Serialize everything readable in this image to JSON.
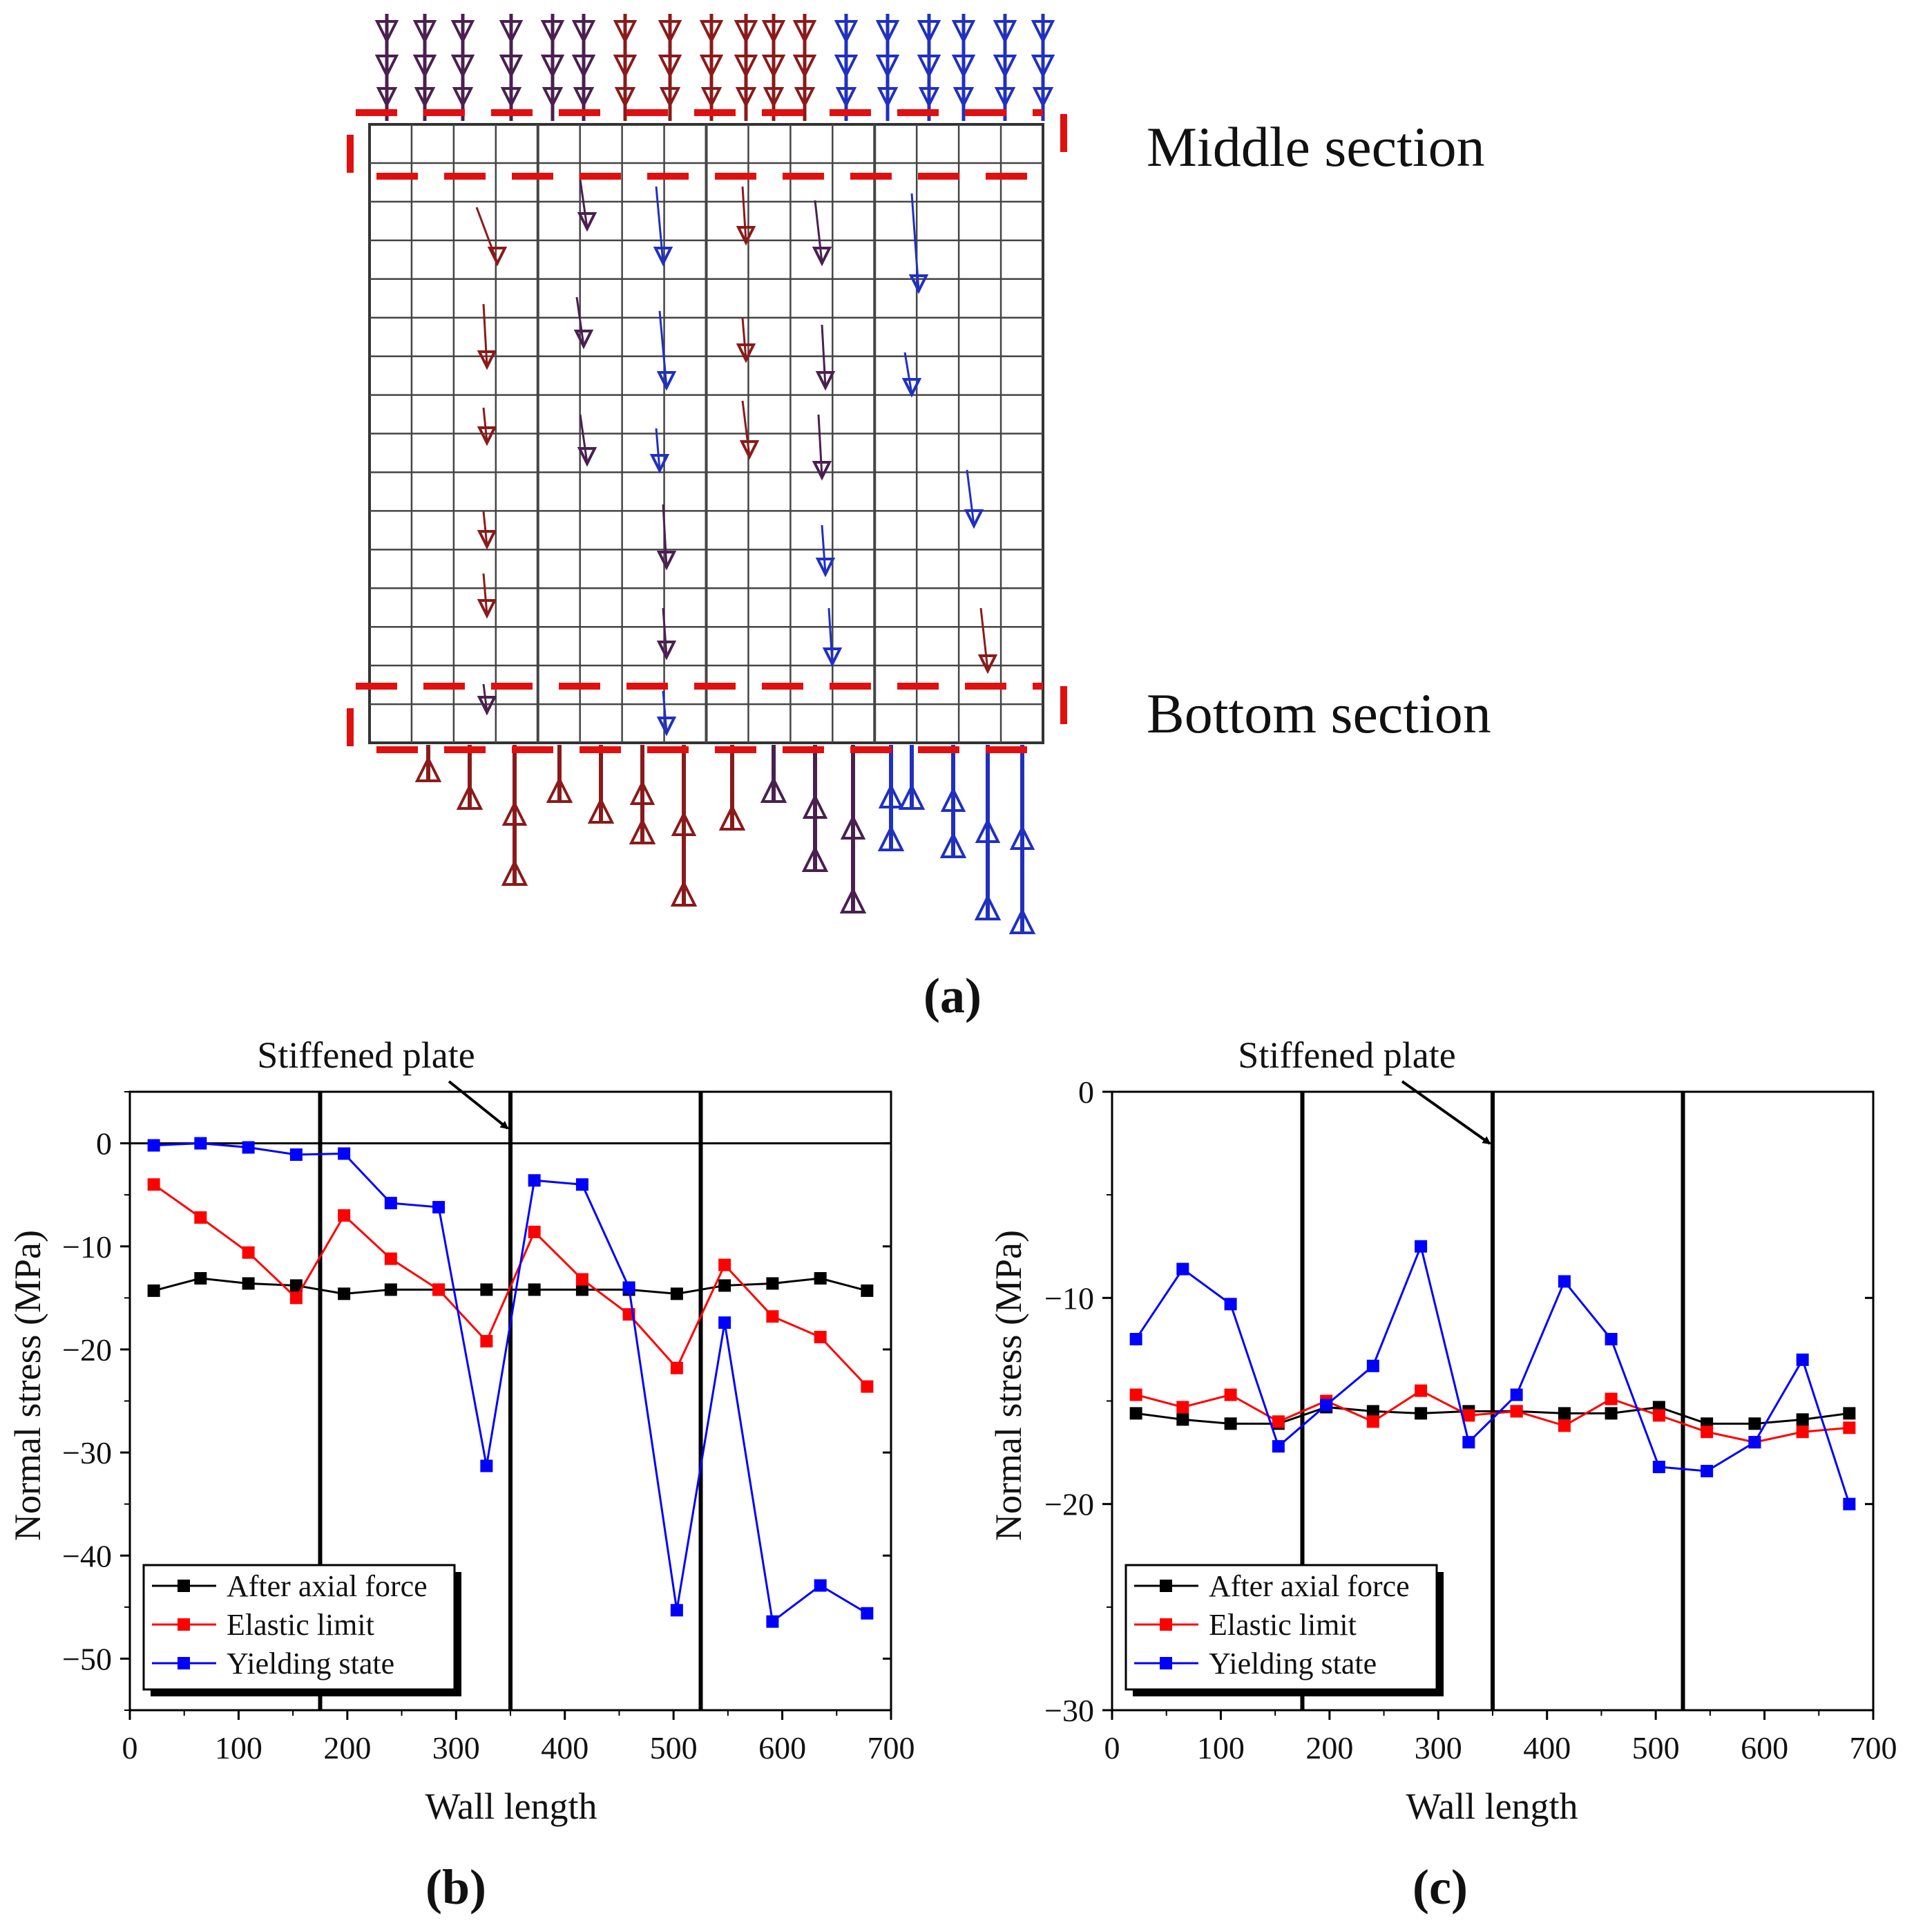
{
  "figure": {
    "panel_a_label": "(a)",
    "panel_b_label": "(b)",
    "panel_c_label": "(c)",
    "middle_section_label": "Middle section",
    "bottom_section_label": "Bottom section",
    "colors": {
      "black_series": "#000000",
      "red_series": "#ff0000",
      "blue_series": "#0000ff",
      "dashed_box": "#e01010",
      "arrow_red": "#8b1a1a",
      "arrow_purple": "#4a2050",
      "arrow_blue": "#2030c0"
    }
  },
  "chart_data": [
    {
      "id": "b",
      "type": "line",
      "annotation": "Stiffened plate",
      "xlabel": "Wall length",
      "ylabel": "Normal stress (MPa)",
      "xlim": [
        0,
        700
      ],
      "ylim": [
        -55,
        5
      ],
      "xticks": [
        0,
        100,
        200,
        300,
        400,
        500,
        600,
        700
      ],
      "yticks": [
        0,
        -10,
        -20,
        -30,
        -40,
        -50
      ],
      "ytick_labels": [
        "0",
        "−10",
        "−20",
        "−30",
        "−40",
        "−50"
      ],
      "zero_line": true,
      "vlines": [
        175,
        350,
        525
      ],
      "legend": "bottom-left",
      "x": [
        22,
        65,
        109,
        153,
        197,
        240,
        284,
        328,
        372,
        416,
        459,
        503,
        547,
        591,
        635,
        678
      ],
      "series": [
        {
          "name": "After axial force",
          "color": "#000000",
          "values": [
            -14.3,
            -13.1,
            -13.6,
            -13.8,
            -14.6,
            -14.2,
            -14.2,
            -14.2,
            -14.2,
            -14.2,
            -14.2,
            -14.6,
            -13.8,
            -13.6,
            -13.1,
            -14.3
          ]
        },
        {
          "name": "Elastic limit",
          "color": "#ff0000",
          "values": [
            -4.0,
            -7.2,
            -10.6,
            -15.0,
            -7.0,
            -11.2,
            -14.2,
            -19.2,
            -8.6,
            -13.2,
            -16.6,
            -21.8,
            -11.8,
            -16.8,
            -18.8,
            -23.6
          ]
        },
        {
          "name": "Yielding state",
          "color": "#0000ff",
          "values": [
            -0.2,
            0.0,
            -0.4,
            -1.1,
            -1.0,
            -5.8,
            -6.2,
            -31.3,
            -3.6,
            -4.0,
            -14.0,
            -45.3,
            -17.4,
            -46.4,
            -42.9,
            -45.6
          ]
        }
      ]
    },
    {
      "id": "c",
      "type": "line",
      "annotation": "Stiffened plate",
      "xlabel": "Wall length",
      "ylabel": "Normal stress (MPa)",
      "xlim": [
        0,
        700
      ],
      "ylim": [
        -30,
        0
      ],
      "xticks": [
        0,
        100,
        200,
        300,
        400,
        500,
        600,
        700
      ],
      "yticks": [
        0,
        -10,
        -20,
        -30
      ],
      "ytick_labels": [
        "0",
        "−10",
        "−20",
        "−30"
      ],
      "zero_line": false,
      "vlines": [
        175,
        350,
        525
      ],
      "legend": "bottom-left",
      "x": [
        22,
        65,
        109,
        153,
        197,
        240,
        284,
        328,
        372,
        416,
        459,
        503,
        547,
        591,
        635,
        678
      ],
      "series": [
        {
          "name": "After axial force",
          "color": "#000000",
          "values": [
            -15.6,
            -15.9,
            -16.1,
            -16.1,
            -15.3,
            -15.5,
            -15.6,
            -15.5,
            -15.5,
            -15.6,
            -15.6,
            -15.3,
            -16.1,
            -16.1,
            -15.9,
            -15.6
          ]
        },
        {
          "name": "Elastic limit",
          "color": "#ff0000",
          "values": [
            -14.7,
            -15.3,
            -14.7,
            -16.0,
            -15.0,
            -16.0,
            -14.5,
            -15.7,
            -15.5,
            -16.2,
            -14.9,
            -15.7,
            -16.5,
            -17.0,
            -16.5,
            -16.3
          ]
        },
        {
          "name": "Yielding state",
          "color": "#0000ff",
          "values": [
            -12.0,
            -8.6,
            -10.3,
            -17.2,
            -15.2,
            -13.3,
            -7.5,
            -17.0,
            -14.7,
            -9.2,
            -12.0,
            -18.2,
            -18.4,
            -17.0,
            -13.0,
            -20.0
          ]
        }
      ]
    }
  ]
}
